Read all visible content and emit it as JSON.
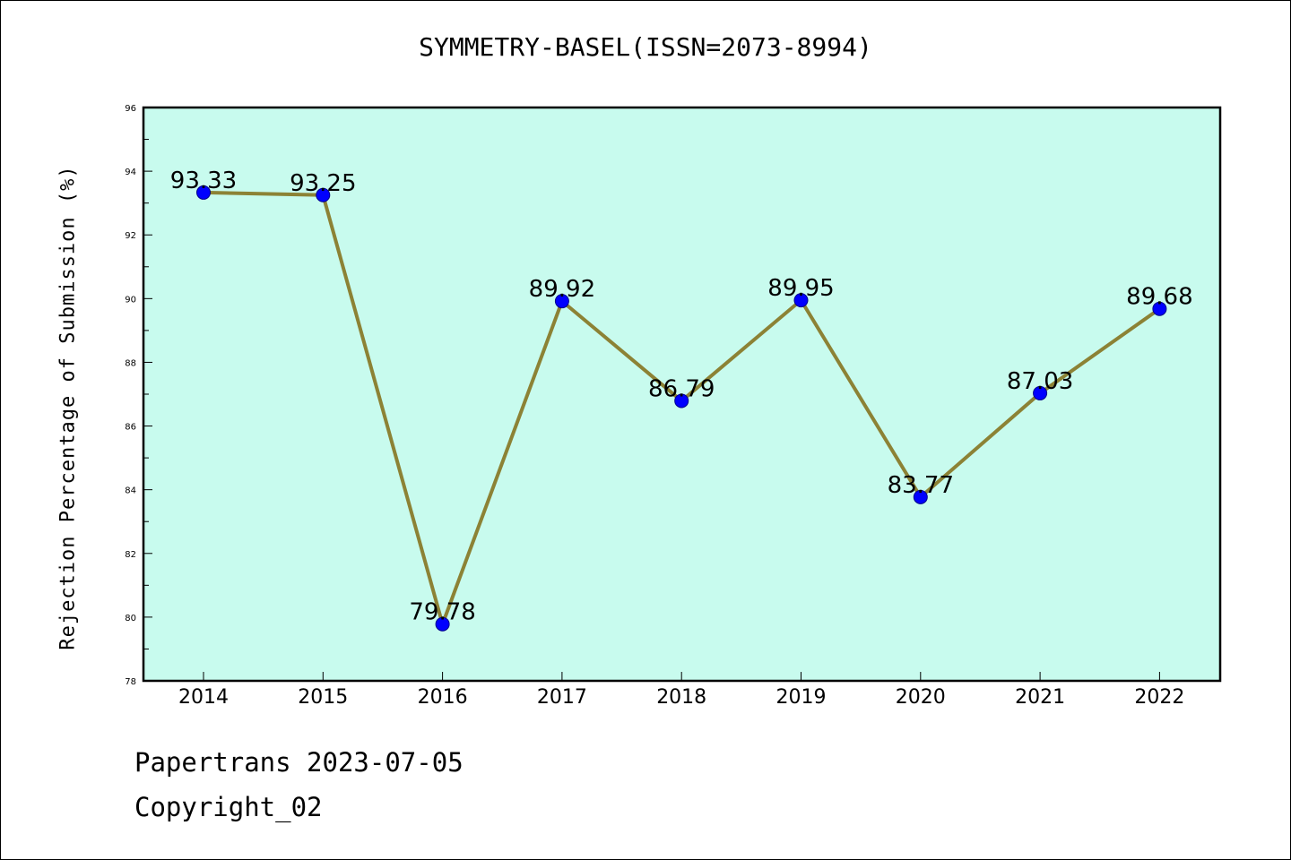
{
  "chart_data": {
    "type": "line",
    "title": "SYMMETRY-BASEL(ISSN=2073-8994)",
    "xlabel": "",
    "ylabel": "Rejection Percentage of Submission (%)",
    "categories": [
      "2014",
      "2015",
      "2016",
      "2017",
      "2018",
      "2019",
      "2020",
      "2021",
      "2022"
    ],
    "series": [
      {
        "values": [
          93.33,
          93.25,
          79.78,
          89.92,
          86.79,
          89.95,
          83.77,
          87.03,
          89.68
        ]
      }
    ],
    "data_labels": [
      "93.33",
      "93.25",
      "79.78",
      "89.92",
      "86.79",
      "89.95",
      "83.77",
      "87.03",
      "89.68"
    ],
    "ylim": [
      78,
      96
    ],
    "yticks": [
      "78",
      "80",
      "82",
      "84",
      "86",
      "88",
      "90",
      "92",
      "94",
      "96"
    ],
    "grid": false,
    "colors": {
      "background": "#c8fbee",
      "line": "#8c8235",
      "marker": "#0000ff"
    }
  },
  "footer": {
    "line1": "Papertrans 2023-07-05",
    "line2": "Copyright_02"
  }
}
